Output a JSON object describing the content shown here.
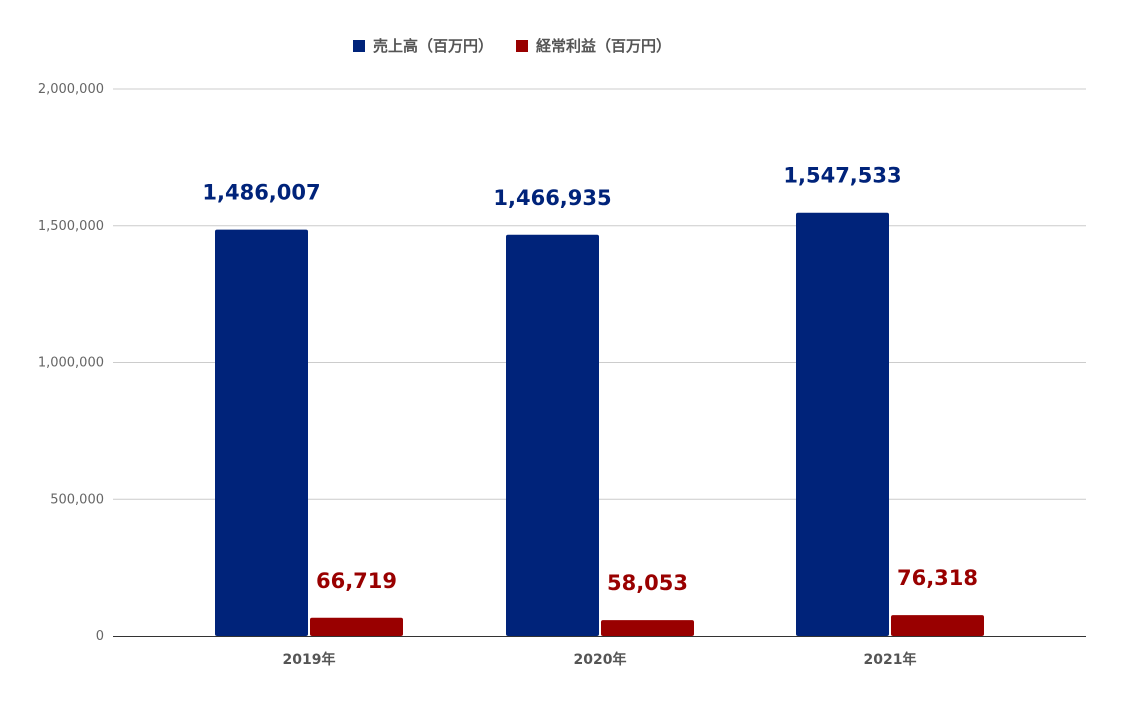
{
  "chart_data": {
    "type": "bar",
    "categories": [
      "2019年",
      "2020年",
      "2021年"
    ],
    "series": [
      {
        "name": "売上高（百万円）",
        "color": "#00237a",
        "values": [
          1486007,
          1466935,
          1547533
        ],
        "labels": [
          "1,486,007",
          "1,466,935",
          "1,547,533"
        ]
      },
      {
        "name": "経常利益（百万円）",
        "color": "#990000",
        "values": [
          66719,
          58053,
          76318
        ],
        "labels": [
          "66,719",
          "58,053",
          "76,318"
        ]
      }
    ],
    "yticks": [
      "0",
      "500,000",
      "1,000,000",
      "1,500,000",
      "2,000,000"
    ],
    "ytick_values": [
      0,
      500000,
      1000000,
      1500000,
      2000000
    ],
    "ylim": [
      0,
      2000000
    ],
    "title": "",
    "xlabel": "",
    "ylabel": "",
    "grid": true,
    "legend_position": "top"
  }
}
